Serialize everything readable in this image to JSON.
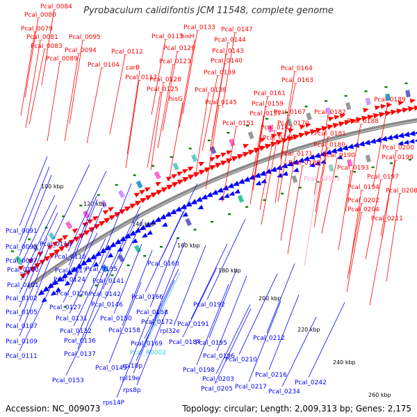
{
  "title": "Pyrobaculum calidifontis JCM 11548, complete genome",
  "accession": "Accession: NC_009073",
  "summary": "Topology: circular; Length: 2,009,313 bp; Genes: 2,175",
  "colors": {
    "forward": "#ff0000",
    "reverse": "#0000ff",
    "rna": "#ff99cc",
    "trna": "#33cccc",
    "backbone": "#888888",
    "cog": "#008000"
  },
  "ticks": [
    "100 kbp",
    "120 kbp",
    "140 kbp",
    "160 kbp",
    "180 kbp",
    "200 kbp",
    "220 kbp",
    "240 kbp",
    "260 kbp"
  ],
  "top_labels": [
    {
      "text": "Pcal_0084",
      "type": "forward"
    },
    {
      "text": "Pcal_0080",
      "type": "forward"
    },
    {
      "text": "Pcal_0079",
      "type": "forward"
    },
    {
      "text": "Pcal_0081",
      "type": "forward"
    },
    {
      "text": "Pcal_0083",
      "type": "forward"
    },
    {
      "text": "Pcal_0089",
      "type": "forward"
    },
    {
      "text": "Pcal_0095",
      "type": "forward"
    },
    {
      "text": "Pcal_0094",
      "type": "forward"
    },
    {
      "text": "Pcal_0104",
      "type": "forward"
    },
    {
      "text": "Pcal_0112",
      "type": "forward"
    },
    {
      "text": "carB",
      "type": "forward"
    },
    {
      "text": "Pcal_0113",
      "type": "forward"
    },
    {
      "text": "Pcal_0115",
      "type": "forward"
    },
    {
      "text": "Pcal_0129",
      "type": "forward"
    },
    {
      "text": "Pcal_0123",
      "type": "forward"
    },
    {
      "text": "Pcal_0128",
      "type": "forward"
    },
    {
      "text": "Pcal_0125",
      "type": "forward"
    },
    {
      "text": "hisG",
      "type": "forward"
    },
    {
      "text": "Pcal_0133",
      "type": "forward"
    },
    {
      "text": "hisH",
      "type": "forward"
    },
    {
      "text": "Pcal_0147",
      "type": "forward"
    },
    {
      "text": "Pcal_0144",
      "type": "forward"
    },
    {
      "text": "Pcal_0143",
      "type": "forward"
    },
    {
      "text": "Pcal_0140",
      "type": "forward"
    },
    {
      "text": "Pcal_0139",
      "type": "forward"
    },
    {
      "text": "Pcal_0138",
      "type": "forward"
    },
    {
      "text": "Pcal_0145",
      "type": "forward"
    },
    {
      "text": "Pcal_0164",
      "type": "forward"
    },
    {
      "text": "Pcal_0163",
      "type": "forward"
    },
    {
      "text": "Pcal_0161",
      "type": "forward"
    },
    {
      "text": "Pcal_0159",
      "type": "forward"
    },
    {
      "text": "Pcal_0157",
      "type": "forward"
    },
    {
      "text": "Pcal_0151",
      "type": "forward"
    },
    {
      "text": "Pcal_0162",
      "type": "forward"
    },
    {
      "text": "Pcal_0165",
      "type": "forward"
    },
    {
      "text": "Pcal_0167",
      "type": "forward"
    },
    {
      "text": "Pcal_0170",
      "type": "forward"
    },
    {
      "text": "Pcal_0182",
      "type": "forward"
    },
    {
      "text": "Pcal_0189",
      "type": "forward"
    },
    {
      "text": "Pcal_0188",
      "type": "forward"
    },
    {
      "text": "Pcal_0181",
      "type": "forward"
    },
    {
      "text": "Pcal_0180",
      "type": "forward"
    },
    {
      "text": "Pcal_0171",
      "type": "forward"
    },
    {
      "text": "Pcal_0186",
      "type": "forward"
    },
    {
      "text": "Pcal_0190",
      "type": "forward"
    },
    {
      "text": "Pcal_0193",
      "type": "forward"
    },
    {
      "text": "Pcal_R0003",
      "type": "rna"
    },
    {
      "text": "Pcal_0200",
      "type": "forward"
    },
    {
      "text": "Pcal_0199",
      "type": "forward"
    },
    {
      "text": "Pcal_0197",
      "type": "forward"
    },
    {
      "text": "Pcal_0194",
      "type": "forward"
    },
    {
      "text": "Pcal_0208",
      "type": "forward"
    },
    {
      "text": "Pcal_0202",
      "type": "forward"
    },
    {
      "text": "Pcal_0204",
      "type": "forward"
    },
    {
      "text": "Pcal_0211",
      "type": "forward"
    }
  ],
  "bottom_labels": [
    {
      "text": "Pcal_0091",
      "type": "reverse"
    },
    {
      "text": "Pcal_0093",
      "type": "reverse"
    },
    {
      "text": "Pcal_0097",
      "type": "reverse"
    },
    {
      "text": "Pcal_0100",
      "type": "reverse"
    },
    {
      "text": "Pcal_0101",
      "type": "reverse"
    },
    {
      "text": "Pcal_0102",
      "type": "reverse"
    },
    {
      "text": "Pcal_0105",
      "type": "reverse"
    },
    {
      "text": "Pcal_0107",
      "type": "reverse"
    },
    {
      "text": "Pcal_0109",
      "type": "reverse"
    },
    {
      "text": "Pcal_0111",
      "type": "reverse"
    },
    {
      "text": "Pcal_0110",
      "type": "reverse"
    },
    {
      "text": "Pcal_0116",
      "type": "reverse"
    },
    {
      "text": "Pcal_0117",
      "type": "reverse"
    },
    {
      "text": "Pcal_0124",
      "type": "reverse"
    },
    {
      "text": "Pcal_0126",
      "type": "reverse"
    },
    {
      "text": "Pcal_0127",
      "type": "reverse"
    },
    {
      "text": "Pcal_0131",
      "type": "reverse"
    },
    {
      "text": "Pcal_0132",
      "type": "reverse"
    },
    {
      "text": "Pcal_0136",
      "type": "reverse"
    },
    {
      "text": "Pcal_0137",
      "type": "reverse"
    },
    {
      "text": "Pcal_0135",
      "type": "reverse"
    },
    {
      "text": "Pcal_0141",
      "type": "reverse"
    },
    {
      "text": "Pcal_0142",
      "type": "reverse"
    },
    {
      "text": "Pcal_0146",
      "type": "reverse"
    },
    {
      "text": "Pcal_0150",
      "type": "reverse"
    },
    {
      "text": "Pcal_0158",
      "type": "reverse"
    },
    {
      "text": "Pcal_0149",
      "type": "reverse"
    },
    {
      "text": "Pcal_0153",
      "type": "reverse"
    },
    {
      "text": "Pcal_0160",
      "type": "reverse"
    },
    {
      "text": "Pcal_0166",
      "type": "reverse"
    },
    {
      "text": "Pcal_0168",
      "type": "reverse"
    },
    {
      "text": "Pcal_0172",
      "type": "reverse"
    },
    {
      "text": "rpl32e",
      "type": "reverse"
    },
    {
      "text": "Pcal_0169",
      "type": "reverse"
    },
    {
      "text": "Pcal_R0002",
      "type": "trna"
    },
    {
      "text": "rpl18p",
      "type": "reverse"
    },
    {
      "text": "rpl19e",
      "type": "reverse"
    },
    {
      "text": "rps8p",
      "type": "reverse"
    },
    {
      "text": "rps14P",
      "type": "reverse"
    },
    {
      "text": "Pcal_0187",
      "type": "reverse"
    },
    {
      "text": "Pcal_0191",
      "type": "reverse"
    },
    {
      "text": "Pcal_0192",
      "type": "reverse"
    },
    {
      "text": "Pcal_0195",
      "type": "reverse"
    },
    {
      "text": "Pcal_0196",
      "type": "reverse"
    },
    {
      "text": "Pcal_0198",
      "type": "reverse"
    },
    {
      "text": "Pcal_0203",
      "type": "reverse"
    },
    {
      "text": "Pcal_0205",
      "type": "reverse"
    },
    {
      "text": "Pcal_0210",
      "type": "reverse"
    },
    {
      "text": "Pcal_0212",
      "type": "reverse"
    },
    {
      "text": "Pcal_0216",
      "type": "reverse"
    },
    {
      "text": "Pcal_0217",
      "type": "reverse"
    },
    {
      "text": "Pcal_0234",
      "type": "reverse"
    },
    {
      "text": "Pcal_0242",
      "type": "reverse"
    }
  ]
}
